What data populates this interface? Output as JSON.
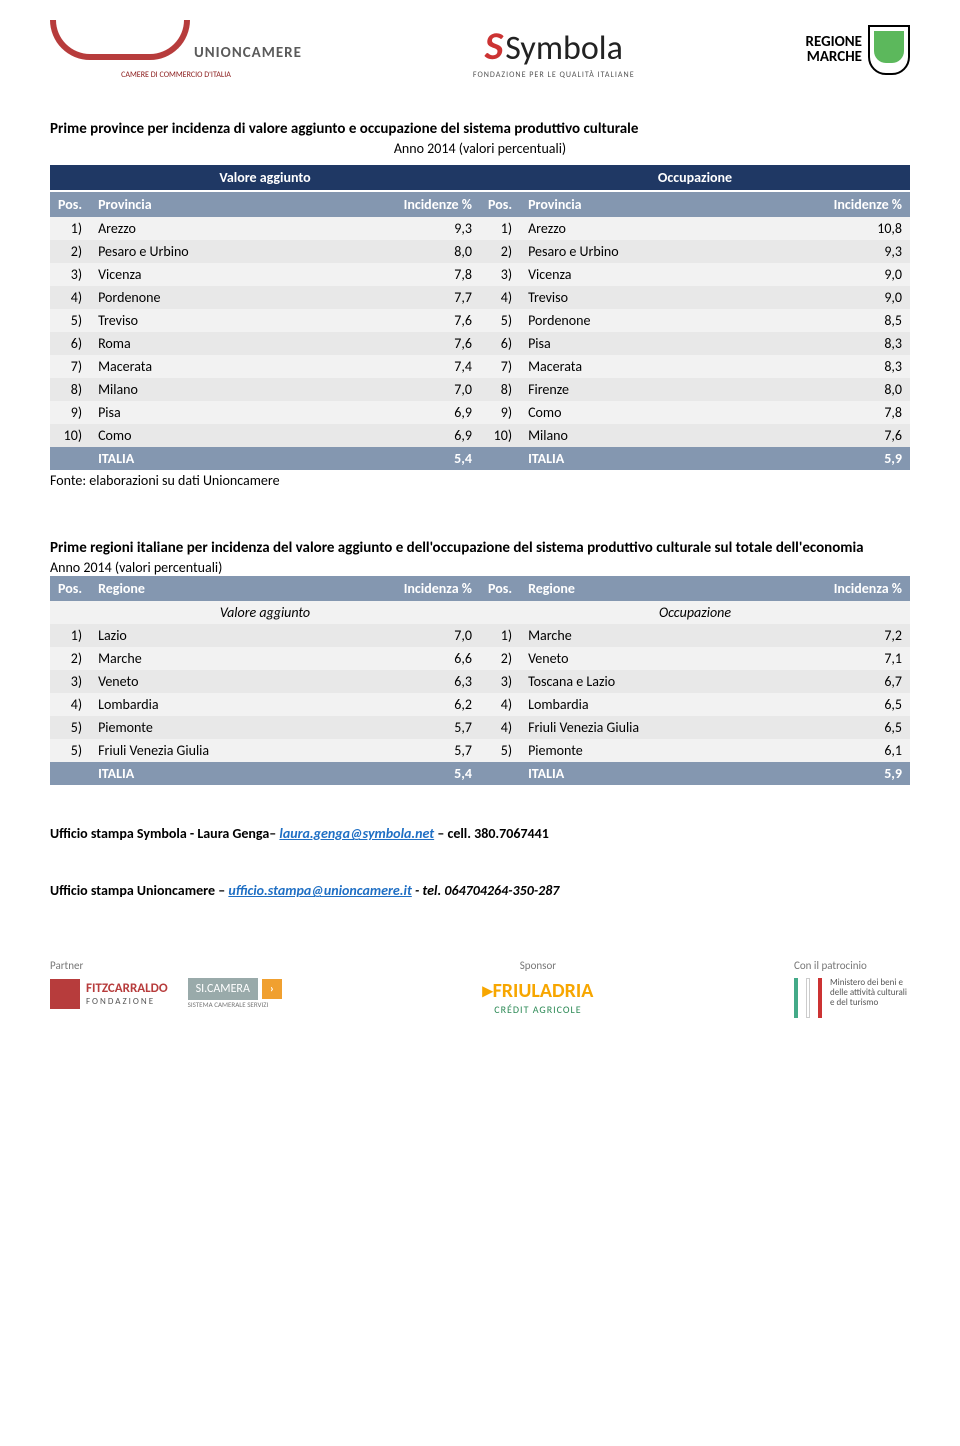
{
  "logos": {
    "unioncamere": {
      "name": "UNIONCAMERE",
      "sub": "CAMERE DI COMMERCIO D'ITALIA"
    },
    "symbola": {
      "name": "Symbola",
      "sub": "FONDAZIONE PER LE QUALITÀ ITALIANE"
    },
    "regione": {
      "l1": "REGIONE",
      "l2": "MARCHE"
    }
  },
  "table1": {
    "title": "Prime province per incidenza di valore aggiunto e occupazione del sistema produttivo culturale",
    "subtitle": "Anno 2014 (valori percentuali)",
    "col_left": "Valore aggiunto",
    "col_right": "Occupazione",
    "headers": {
      "pos": "Pos.",
      "prov": "Provincia",
      "inc": "Incidenze %"
    },
    "rows": [
      {
        "lp": "1)",
        "ln": "Arezzo",
        "lv": "9,3",
        "rp": "1)",
        "rn": "Arezzo",
        "rv": "10,8"
      },
      {
        "lp": "2)",
        "ln": "Pesaro e Urbino",
        "lv": "8,0",
        "rp": "2)",
        "rn": "Pesaro e Urbino",
        "rv": "9,3"
      },
      {
        "lp": "3)",
        "ln": "Vicenza",
        "lv": "7,8",
        "rp": "3)",
        "rn": "Vicenza",
        "rv": "9,0"
      },
      {
        "lp": "4)",
        "ln": "Pordenone",
        "lv": "7,7",
        "rp": "4)",
        "rn": "Treviso",
        "rv": "9,0"
      },
      {
        "lp": "5)",
        "ln": "Treviso",
        "lv": "7,6",
        "rp": "5)",
        "rn": "Pordenone",
        "rv": "8,5"
      },
      {
        "lp": "6)",
        "ln": "Roma",
        "lv": "7,6",
        "rp": "6)",
        "rn": "Pisa",
        "rv": "8,3"
      },
      {
        "lp": "7)",
        "ln": "Macerata",
        "lv": "7,4",
        "rp": "7)",
        "rn": "Macerata",
        "rv": "8,3"
      },
      {
        "lp": "8)",
        "ln": "Milano",
        "lv": "7,0",
        "rp": "8)",
        "rn": "Firenze",
        "rv": "8,0"
      },
      {
        "lp": "9)",
        "ln": "Pisa",
        "lv": "6,9",
        "rp": "9)",
        "rn": "Como",
        "rv": "7,8"
      },
      {
        "lp": "10)",
        "ln": "Como",
        "lv": "6,9",
        "rp": "10)",
        "rn": "Milano",
        "rv": "7,6"
      }
    ],
    "total": {
      "l_label": "ITALIA",
      "l_val": "5,4",
      "r_label": "ITALIA",
      "r_val": "5,9"
    },
    "source": "Fonte: elaborazioni su dati Unioncamere"
  },
  "table2": {
    "title": "Prime regioni italiane per incidenza del valore aggiunto e dell'occupazione del sistema produttivo culturale sul totale dell'economia",
    "anno": "Anno 2014 (valori percentuali)",
    "headers": {
      "pos": "Pos.",
      "reg": "Regione",
      "inc": "Incidenza %"
    },
    "sub_left": "Valore aggiunto",
    "sub_right": "Occupazione",
    "rows": [
      {
        "lp": "1)",
        "ln": "Lazio",
        "lv": "7,0",
        "rp": "1)",
        "rn": "Marche",
        "rv": "7,2"
      },
      {
        "lp": "2)",
        "ln": "Marche",
        "lv": "6,6",
        "rp": "2)",
        "rn": "Veneto",
        "rv": "7,1"
      },
      {
        "lp": "3)",
        "ln": "Veneto",
        "lv": "6,3",
        "rp": "3)",
        "rn": "Toscana e Lazio",
        "rv": "6,7"
      },
      {
        "lp": "4)",
        "ln": "Lombardia",
        "lv": "6,2",
        "rp": "4)",
        "rn": "Lombardia",
        "rv": "6,5"
      },
      {
        "lp": "5)",
        "ln": "Piemonte",
        "lv": "5,7",
        "rp": "4)",
        "rn": "Friuli Venezia Giulia",
        "rv": "6,5"
      },
      {
        "lp": "5)",
        "ln": "Friuli Venezia Giulia",
        "lv": "5,7",
        "rp": "5)",
        "rn": "Piemonte",
        "rv": "6,1"
      }
    ],
    "total": {
      "l_label": "ITALIA",
      "l_val": "5,4",
      "r_label": "ITALIA",
      "r_val": "5,9"
    }
  },
  "contacts": {
    "line1_pre": "Ufficio stampa Symbola -  Laura Genga– ",
    "line1_email": "laura.genga@symbola.net",
    "line1_post": " – cell. 380.7067441",
    "line2_pre": "Ufficio stampa Unioncamere – ",
    "line2_email": "ufficio.stampa@unioncamere.it",
    "line2_post": " -  tel. 064704264-350-287"
  },
  "footer": {
    "partner": "Partner",
    "sponsor": "Sponsor",
    "patrocinio": "Con il patrocinio",
    "fitz": {
      "l1": "FITZCARRALDO",
      "l2": "FONDAZIONE"
    },
    "sicamera": "SI.CAMERA",
    "sicamera_sub": "SISTEMA CAMERALE SERVIZI",
    "friul": {
      "l1": "FRIULADRIA",
      "l2": "CRÉDIT AGRICOLE"
    },
    "mibact": "Ministero dei beni e delle attività culturali e del turismo"
  },
  "styling": {
    "header_bg": "#1f3864",
    "th_bg": "#8497b0",
    "row_odd_bg": "#f2f2f2",
    "row_even_bg": "#e8e8e8",
    "text_color": "#000000",
    "link_color": "#1f6fc4",
    "body_width": 960,
    "body_font": "Calibri, Arial, sans-serif",
    "base_fontsize": 14
  }
}
